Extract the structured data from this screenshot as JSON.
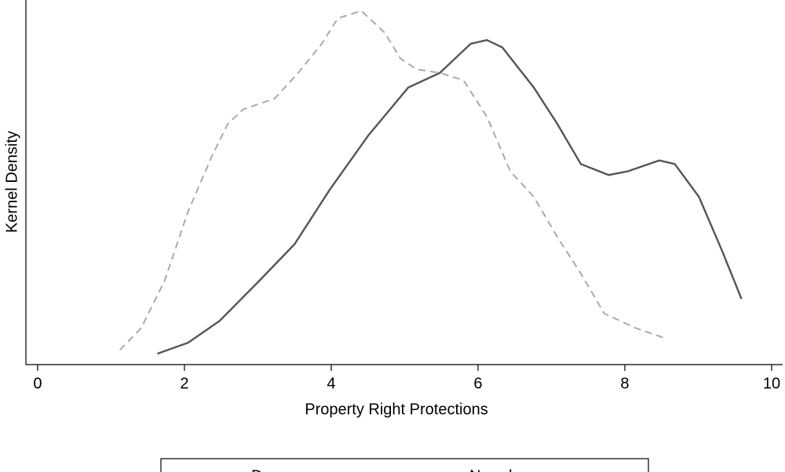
{
  "chart_data": {
    "type": "line",
    "x_label": "Property Right Protections",
    "y_label": "Kernel Density",
    "xlim": [
      -0.16,
      10.15
    ],
    "xticks": [
      0,
      2,
      4,
      6,
      8,
      10
    ],
    "ylim": [
      0,
      1
    ],
    "legend": "bottom",
    "series": [
      {
        "name": "Democracy",
        "color": "#555555",
        "dash": false,
        "x": [
          1.63,
          2.05,
          2.48,
          3.02,
          3.5,
          3.98,
          4.51,
          5.05,
          5.48,
          5.9,
          6.12,
          6.33,
          6.76,
          7.08,
          7.4,
          7.78,
          8.04,
          8.47,
          8.68,
          9.01,
          9.33,
          9.59
        ],
        "values": [
          0.03,
          0.06,
          0.12,
          0.23,
          0.33,
          0.48,
          0.63,
          0.76,
          0.8,
          0.88,
          0.89,
          0.87,
          0.76,
          0.66,
          0.55,
          0.52,
          0.53,
          0.56,
          0.55,
          0.46,
          0.31,
          0.18
        ]
      },
      {
        "name": "Non-democracy",
        "color": "#aaaaaa",
        "dash": true,
        "x": [
          1.12,
          1.41,
          1.73,
          2.05,
          2.37,
          2.59,
          2.8,
          3.23,
          3.55,
          3.87,
          4.09,
          4.41,
          4.73,
          4.94,
          5.16,
          5.48,
          5.8,
          6.12,
          6.44,
          6.76,
          7.08,
          7.4,
          7.72,
          8.15,
          8.58
        ],
        "values": [
          0.04,
          0.1,
          0.23,
          0.42,
          0.57,
          0.66,
          0.7,
          0.73,
          0.8,
          0.88,
          0.95,
          0.97,
          0.91,
          0.84,
          0.81,
          0.8,
          0.78,
          0.68,
          0.53,
          0.46,
          0.35,
          0.25,
          0.14,
          0.1,
          0.07
        ]
      }
    ]
  }
}
